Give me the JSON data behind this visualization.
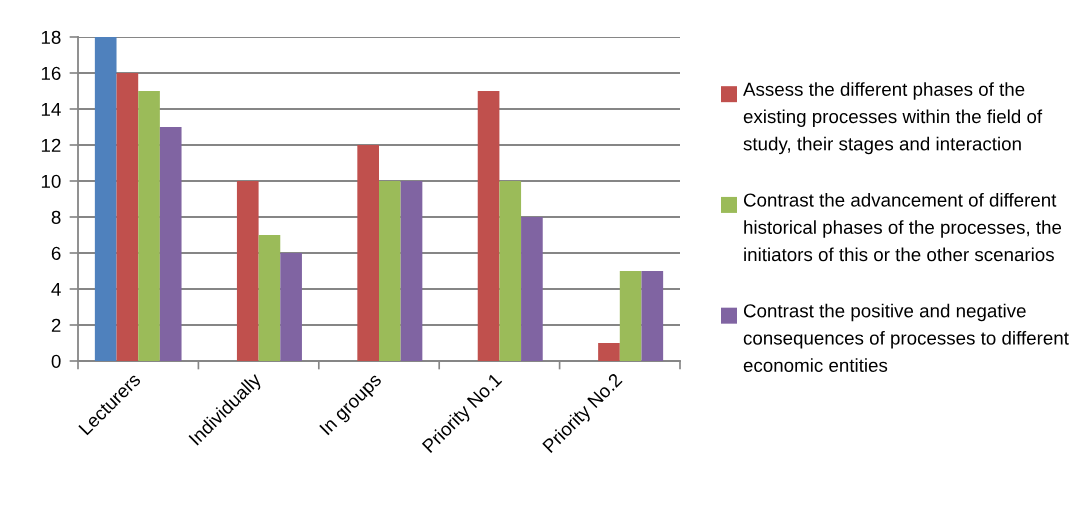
{
  "chart_data": {
    "type": "bar",
    "categories": [
      "Lecturers",
      "Individually",
      "In groups",
      "Priority No.1",
      "Priority No.2"
    ],
    "series": [
      {
        "color": "#4f81bd",
        "values": [
          18,
          null,
          null,
          null,
          null
        ]
      },
      {
        "name": "Assess the different phases of the existing processes within the field of study, their stages and interaction",
        "color": "#c0504d",
        "values": [
          16,
          10,
          12,
          15,
          1
        ]
      },
      {
        "name": "Contrast the advancement of different historical phases of the processes, the initiators of this or the other scenarios",
        "color": "#9bbb59",
        "values": [
          15,
          7,
          10,
          10,
          5
        ]
      },
      {
        "name": "Contrast the positive and negative consequences of processes to different economic entities",
        "color": "#8064a2",
        "values": [
          13,
          6,
          10,
          8,
          5
        ]
      }
    ],
    "ylim": [
      0,
      18
    ],
    "yticks": [
      0,
      2,
      4,
      6,
      8,
      10,
      12,
      14,
      16,
      18
    ],
    "grid": "y",
    "legend": "right"
  }
}
